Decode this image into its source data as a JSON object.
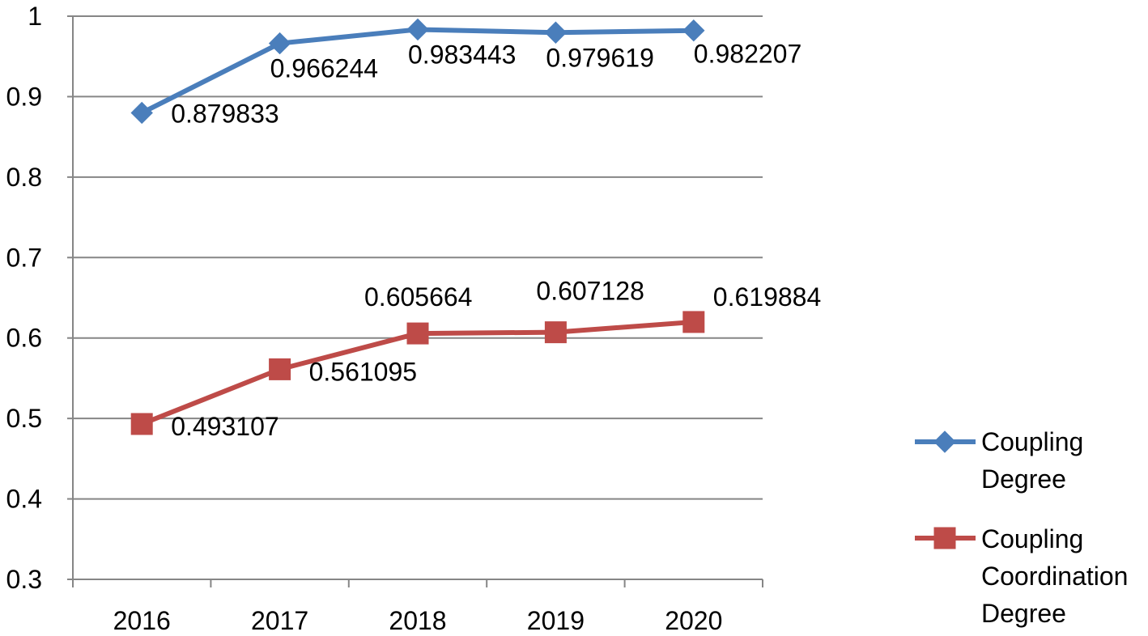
{
  "chart_data": {
    "type": "line",
    "title": "",
    "xlabel": "",
    "ylabel": "",
    "categories": [
      "2016",
      "2017",
      "2018",
      "2019",
      "2020"
    ],
    "ylim": [
      0.3,
      1
    ],
    "yticks": [
      "0.3",
      "0.4",
      "0.5",
      "0.6",
      "0.7",
      "0.8",
      "0.9",
      "1"
    ],
    "grid": true,
    "legend_position": "right",
    "series": [
      {
        "name": "Coupling Degree",
        "legend_lines": [
          "Coupling",
          "Degree"
        ],
        "values": [
          0.879833,
          0.966244,
          0.983443,
          0.979619,
          0.982207
        ],
        "labels": [
          "0.879833",
          "0.966244",
          "0.983443",
          "0.979619",
          "0.982207"
        ],
        "color": "#4a7ebb",
        "marker": "diamond"
      },
      {
        "name": "Coupling Coordination Degree",
        "legend_lines": [
          "Coupling",
          "Coordination",
          "Degree"
        ],
        "values": [
          0.493107,
          0.561095,
          0.605664,
          0.607128,
          0.619884
        ],
        "labels": [
          "0.493107",
          "0.561095",
          "0.605664",
          "0.607128",
          "0.619884"
        ],
        "color": "#be4b48",
        "marker": "square"
      }
    ]
  }
}
